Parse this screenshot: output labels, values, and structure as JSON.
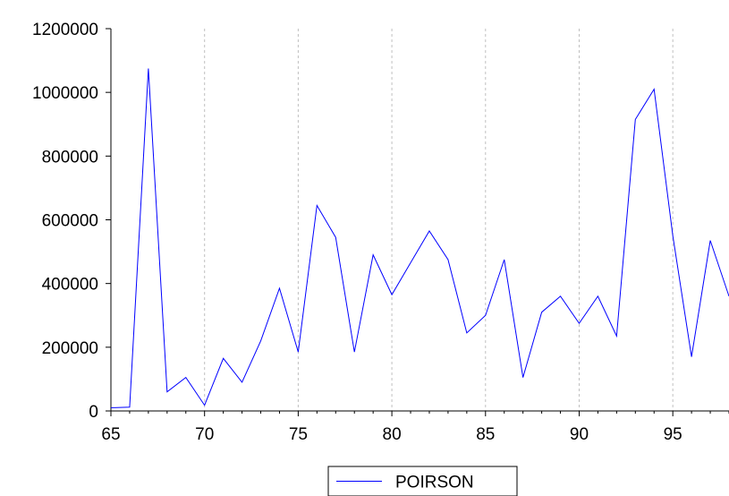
{
  "chart_data": {
    "type": "line",
    "xlim": [
      65,
      98
    ],
    "ylim": [
      0,
      1200000
    ],
    "x_ticks": [
      65,
      70,
      75,
      80,
      85,
      90,
      95
    ],
    "y_ticks": [
      0,
      200000,
      400000,
      600000,
      800000,
      1000000,
      1200000
    ],
    "x_tick_labels": [
      "65",
      "70",
      "75",
      "80",
      "85",
      "90",
      "95"
    ],
    "y_tick_labels": [
      "0",
      "200000",
      "400000",
      "600000",
      "800000",
      "1000000",
      "1200000"
    ],
    "vertical_grid": true,
    "grid_style": "dashed",
    "legend_position": "bottom-center",
    "series": [
      {
        "name": "POIRSON",
        "color": "#0000ff",
        "x": [
          65,
          66,
          67,
          68,
          69,
          70,
          71,
          72,
          73,
          74,
          75,
          76,
          77,
          78,
          79,
          80,
          81,
          82,
          83,
          84,
          85,
          86,
          87,
          88,
          89,
          90,
          91,
          92,
          93,
          94,
          95,
          96,
          97,
          98
        ],
        "values": [
          10000,
          12000,
          1075000,
          60000,
          105000,
          18000,
          165000,
          90000,
          220000,
          385000,
          185000,
          645000,
          545000,
          185000,
          490000,
          365000,
          465000,
          565000,
          475000,
          245000,
          300000,
          475000,
          105000,
          310000,
          360000,
          275000,
          360000,
          235000,
          915000,
          1010000,
          550000,
          170000,
          535000,
          360000
        ]
      }
    ]
  }
}
